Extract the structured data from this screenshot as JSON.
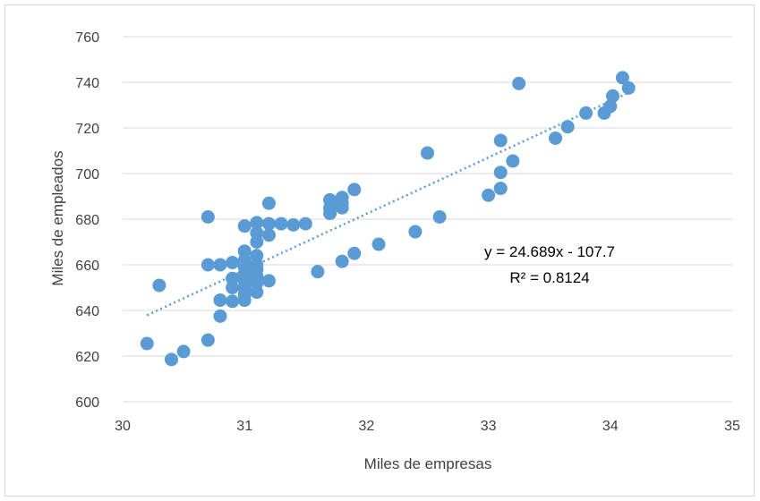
{
  "chart_data": {
    "type": "scatter",
    "title": "",
    "xlabel": "Miles de empresas",
    "ylabel": "Miles de empleados",
    "xlim": [
      30,
      35
    ],
    "ylim": [
      600,
      760
    ],
    "xticks": [
      "30",
      "31",
      "32",
      "33",
      "34",
      "35"
    ],
    "yticks": [
      "600",
      "620",
      "640",
      "660",
      "680",
      "700",
      "720",
      "740",
      "760"
    ],
    "grid": "horizontal",
    "colors": {
      "points": "#5b9bd5",
      "trendline": "#5b9bd5",
      "grid": "#d9d9d9"
    },
    "trendline": {
      "type": "linear",
      "style": "dotted",
      "slope": 24.689,
      "intercept": -107.7,
      "x_range": [
        30.2,
        34.15
      ],
      "equation_label": "y = 24.689x - 107.7",
      "r2_label": "R² = 0.8124"
    },
    "points": [
      [
        30.2,
        625.5
      ],
      [
        30.3,
        651
      ],
      [
        30.4,
        618.5
      ],
      [
        30.5,
        622
      ],
      [
        30.7,
        627
      ],
      [
        30.7,
        660
      ],
      [
        30.7,
        681
      ],
      [
        30.8,
        637.5
      ],
      [
        30.8,
        644.5
      ],
      [
        30.8,
        660
      ],
      [
        30.9,
        644
      ],
      [
        30.9,
        650
      ],
      [
        30.9,
        654
      ],
      [
        30.9,
        661
      ],
      [
        31.0,
        644.5
      ],
      [
        31.0,
        647
      ],
      [
        31.0,
        650
      ],
      [
        31.0,
        653
      ],
      [
        31.0,
        656
      ],
      [
        31.0,
        659
      ],
      [
        31.0,
        662
      ],
      [
        31.0,
        666
      ],
      [
        31.0,
        677
      ],
      [
        31.1,
        648
      ],
      [
        31.1,
        652
      ],
      [
        31.1,
        655
      ],
      [
        31.1,
        658
      ],
      [
        31.1,
        660
      ],
      [
        31.1,
        664
      ],
      [
        31.1,
        670
      ],
      [
        31.1,
        674
      ],
      [
        31.1,
        678.5
      ],
      [
        31.2,
        653
      ],
      [
        31.2,
        673
      ],
      [
        31.2,
        678
      ],
      [
        31.2,
        687
      ],
      [
        31.3,
        678
      ],
      [
        31.4,
        677.5
      ],
      [
        31.5,
        678
      ],
      [
        31.6,
        657
      ],
      [
        31.7,
        682.5
      ],
      [
        31.7,
        685
      ],
      [
        31.7,
        688.5
      ],
      [
        31.8,
        661.5
      ],
      [
        31.8,
        685
      ],
      [
        31.8,
        687
      ],
      [
        31.8,
        689.5
      ],
      [
        31.9,
        665
      ],
      [
        31.9,
        693
      ],
      [
        32.1,
        669
      ],
      [
        32.4,
        674.5
      ],
      [
        32.5,
        709
      ],
      [
        32.6,
        681
      ],
      [
        33.0,
        690.5
      ],
      [
        33.1,
        693.5
      ],
      [
        33.1,
        700.5
      ],
      [
        33.1,
        714.5
      ],
      [
        33.2,
        705.5
      ],
      [
        33.25,
        739.5
      ],
      [
        33.55,
        715.5
      ],
      [
        33.65,
        720.5
      ],
      [
        33.8,
        726.5
      ],
      [
        33.95,
        726.5
      ],
      [
        34.0,
        729.5
      ],
      [
        34.02,
        734
      ],
      [
        34.1,
        742
      ],
      [
        34.15,
        737.5
      ]
    ]
  }
}
